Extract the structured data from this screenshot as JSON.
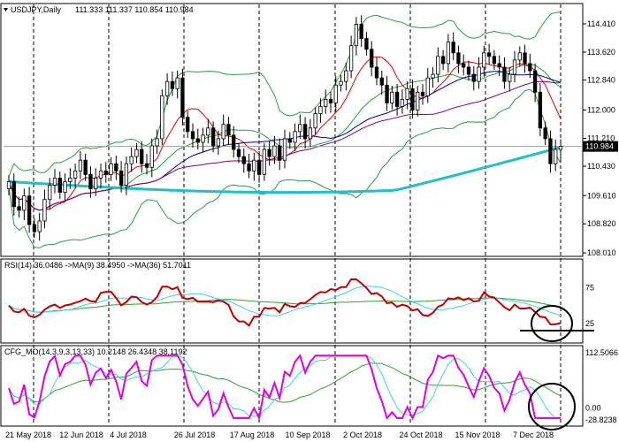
{
  "chart_data": {
    "type": "line",
    "subtype": "candlestick-with-indicators",
    "title": "USDJPY,Daily",
    "ohlc_header": "111.333 111.337 110.854 110.984",
    "last_price_label": "110.984",
    "x_tick_labels": [
      "21 May 2018",
      "12 Jun 2018",
      "4 Jul 2018",
      "26 Jul 2018",
      "17 Aug 2018",
      "10 Sep 2018",
      "2 Oct 2018",
      "24 Oct 2018",
      "15 Nov 2018",
      "7 Dec 2018"
    ],
    "price_panel": {
      "y_tick_labels": [
        "114.410",
        "113.620",
        "112.840",
        "112.000",
        "111.210",
        "110.430",
        "109.610",
        "108.820",
        "108.010"
      ],
      "ylim": [
        108.01,
        114.41
      ],
      "last_price": 110.984,
      "close_series_approx": [
        110.0,
        109.3,
        109.2,
        109.6,
        108.8,
        108.6,
        108.9,
        109.5,
        109.9,
        110.1,
        109.7,
        110.0,
        110.1,
        110.3,
        110.6,
        110.2,
        109.8,
        110.1,
        110.3,
        110.2,
        110.5,
        110.3,
        109.9,
        110.5,
        110.7,
        110.9,
        110.5,
        110.4,
        111.0,
        111.2,
        112.4,
        112.8,
        112.6,
        112.9,
        111.8,
        111.4,
        111.2,
        111.1,
        111.3,
        111.5,
        111.0,
        111.2,
        111.6,
        111.3,
        110.9,
        110.7,
        110.5,
        110.3,
        110.6,
        110.2,
        110.9,
        110.7,
        111.0,
        110.6,
        111.2,
        111.1,
        111.4,
        111.6,
        111.2,
        111.5,
        111.9,
        112.1,
        112.3,
        112.2,
        112.7,
        112.8,
        113.1,
        113.8,
        114.4,
        114.0,
        113.7,
        113.2,
        112.9,
        112.7,
        112.2,
        112.5,
        112.1,
        112.3,
        112.6,
        112.0,
        112.5,
        112.4,
        112.9,
        113.0,
        113.5,
        113.3,
        113.9,
        113.6,
        113.3,
        113.2,
        113.0,
        112.8,
        113.2,
        113.6,
        113.5,
        113.3,
        113.2,
        112.8,
        113.0,
        113.4,
        113.6,
        113.3,
        113.1,
        112.5,
        111.5,
        111.2,
        110.5,
        110.9,
        110.984
      ]
    },
    "rsi_panel": {
      "header": "RSI(14) 36.0486 ->MA(9) 38.4950 ->MA(36) 51.7011",
      "series": [
        {
          "name": "RSI(14)",
          "value": 36.0486,
          "color": "#c00000"
        },
        {
          "name": "MA(9)",
          "value": 38.495,
          "color": "#40d0f0"
        },
        {
          "name": "MA(36)",
          "value": 51.7011,
          "color": "#30a030"
        }
      ],
      "y_tick_labels": [
        "75",
        "25"
      ],
      "ylim": [
        0,
        100
      ]
    },
    "cfg_mo_panel": {
      "header": "CFG_MO(14,3,9,3,13,33) 10.2148 26.4348 38.1192",
      "series": [
        {
          "value": 10.2148,
          "color": "#e000e0"
        },
        {
          "value": 26.4348,
          "color": "#40d0f0"
        },
        {
          "value": 38.1192,
          "color": "#30a030"
        }
      ],
      "y_tick_labels": [
        "112.5066",
        "0.00",
        "-28.8238"
      ]
    },
    "overlays": [
      "Bollinger Bands (green)",
      "Moving averages (red, navy, purple)",
      "Long MA (cyan, thick)"
    ],
    "grid": "vertical dashed",
    "colors": {
      "candle_bull": "#ffffff",
      "candle_bear": "#000000",
      "bollinger": "#20a040",
      "ma_fast": "#e00000",
      "ma_mid": "#000080",
      "ma_slow": "#800080",
      "ma_long": "#20c0c8",
      "rsi": "#c00000",
      "cfg_main": "#e000e0",
      "signal_a": "#40d0f0",
      "signal_b": "#30a030",
      "annotation": "#000000"
    }
  }
}
